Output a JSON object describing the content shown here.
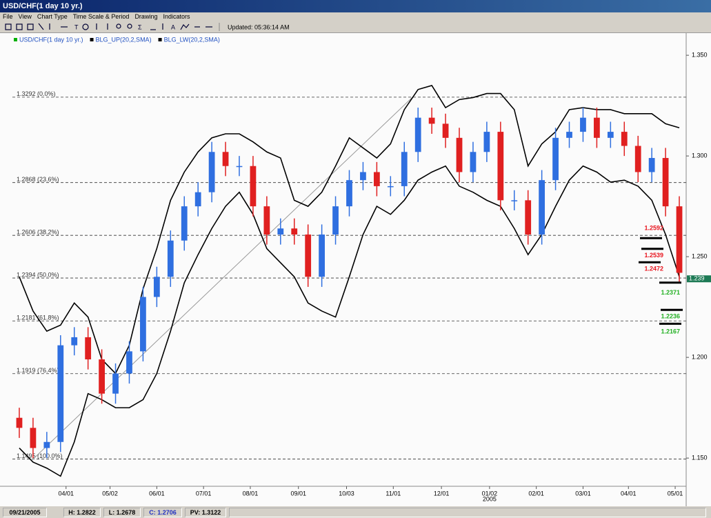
{
  "window": {
    "title": "USD/CHF(1 day 10 yr.)",
    "menu": [
      "File",
      "View",
      "Chart Type",
      "Time Scale & Period",
      "Drawing",
      "Indicators"
    ],
    "updated": "Updated: 05:36:14 AM",
    "status": [
      "09/21/2005",
      "H: 1.2822",
      "L: 1.2678",
      "C: 1.2706",
      "PV: 1.3122"
    ]
  },
  "chart_data": {
    "type": "candlestick",
    "legend": [
      {
        "name": "USD/CHF(1 day 10 yr.)",
        "color": "#00b000"
      },
      {
        "name": "BLG_UP(20,2,SMA)",
        "color": "#000000"
      },
      {
        "name": "BLG_LW(20,2,SMA)",
        "color": "#000000"
      }
    ],
    "up_color": "#2f6fe0",
    "down_color": "#e02020",
    "categories": [
      null,
      null,
      null,
      null,
      null,
      null,
      null,
      null,
      null,
      null,
      null,
      null,
      null,
      null,
      null,
      null,
      null,
      null,
      null,
      null,
      null,
      null,
      null,
      null,
      null,
      null,
      null,
      null,
      null,
      null,
      null,
      null,
      null,
      null,
      null,
      null,
      null,
      null,
      null,
      null,
      null,
      null,
      null,
      null,
      null,
      null,
      null,
      null,
      null
    ],
    "open": [
      1.17,
      1.165,
      1.155,
      1.158,
      1.206,
      1.21,
      1.199,
      1.182,
      1.192,
      1.203,
      1.23,
      1.24,
      1.258,
      1.275,
      1.282,
      1.302,
      1.295,
      1.295,
      1.275,
      1.261,
      1.264,
      1.261,
      1.24,
      1.261,
      1.275,
      1.288,
      1.292,
      1.285,
      1.285,
      1.302,
      1.319,
      1.316,
      1.309,
      1.292,
      1.302,
      1.312,
      1.278,
      1.278,
      1.261,
      1.288,
      1.309,
      1.312,
      1.319,
      1.309,
      1.312,
      1.305,
      1.292,
      1.299,
      1.275
    ],
    "high": [
      1.175,
      1.17,
      1.163,
      1.211,
      1.215,
      1.215,
      1.204,
      1.197,
      1.208,
      1.235,
      1.245,
      1.263,
      1.28,
      1.287,
      1.307,
      1.307,
      1.3,
      1.3,
      1.28,
      1.269,
      1.269,
      1.266,
      1.266,
      1.28,
      1.293,
      1.297,
      1.297,
      1.29,
      1.307,
      1.324,
      1.324,
      1.321,
      1.314,
      1.307,
      1.317,
      1.317,
      1.283,
      1.283,
      1.293,
      1.314,
      1.317,
      1.324,
      1.324,
      1.317,
      1.317,
      1.31,
      1.304,
      1.304,
      1.28
    ],
    "low": [
      1.16,
      1.15,
      1.15,
      1.153,
      1.201,
      1.194,
      1.177,
      1.177,
      1.187,
      1.198,
      1.225,
      1.235,
      1.253,
      1.27,
      1.277,
      1.29,
      1.29,
      1.27,
      1.256,
      1.256,
      1.256,
      1.235,
      1.235,
      1.256,
      1.27,
      1.283,
      1.28,
      1.28,
      1.28,
      1.297,
      1.311,
      1.304,
      1.287,
      1.287,
      1.297,
      1.273,
      1.273,
      1.256,
      1.256,
      1.283,
      1.304,
      1.307,
      1.304,
      1.304,
      1.3,
      1.287,
      1.287,
      1.27,
      1.237
    ],
    "close": [
      1.165,
      1.155,
      1.158,
      1.206,
      1.21,
      1.199,
      1.182,
      1.192,
      1.203,
      1.23,
      1.24,
      1.258,
      1.275,
      1.282,
      1.302,
      1.295,
      1.295,
      1.275,
      1.261,
      1.264,
      1.261,
      1.24,
      1.261,
      1.275,
      1.288,
      1.292,
      1.285,
      1.285,
      1.302,
      1.319,
      1.316,
      1.309,
      1.292,
      1.302,
      1.312,
      1.278,
      1.278,
      1.261,
      1.288,
      1.309,
      1.312,
      1.319,
      1.309,
      1.312,
      1.305,
      1.292,
      1.299,
      1.275,
      1.242
    ],
    "series": [
      {
        "name": "BLG_UP(20,2,SMA)",
        "color": "#000000",
        "values": [
          1.24,
          1.223,
          1.213,
          1.216,
          1.227,
          1.22,
          1.199,
          1.192,
          1.206,
          1.234,
          1.254,
          1.278,
          1.292,
          1.302,
          1.309,
          1.311,
          1.311,
          1.307,
          1.302,
          1.299,
          1.278,
          1.275,
          1.282,
          1.295,
          1.309,
          1.304,
          1.299,
          1.306,
          1.323,
          1.333,
          1.335,
          1.324,
          1.328,
          1.329,
          1.331,
          1.331,
          1.323,
          1.295,
          1.306,
          1.312,
          1.323,
          1.324,
          1.323,
          1.323,
          1.321,
          1.321,
          1.321,
          1.316,
          1.314
        ]
      },
      {
        "name": "BLG_LW(20,2,SMA)",
        "color": "#000000",
        "values": [
          1.155,
          1.148,
          1.145,
          1.141,
          1.158,
          1.182,
          1.179,
          1.175,
          1.175,
          1.179,
          1.192,
          1.213,
          1.237,
          1.251,
          1.264,
          1.275,
          1.282,
          1.271,
          1.254,
          1.247,
          1.24,
          1.227,
          1.223,
          1.22,
          1.24,
          1.261,
          1.275,
          1.271,
          1.278,
          1.288,
          1.292,
          1.295,
          1.285,
          1.282,
          1.278,
          1.275,
          1.264,
          1.251,
          1.261,
          1.275,
          1.288,
          1.295,
          1.292,
          1.287,
          1.288,
          1.285,
          1.278,
          1.261,
          1.24
        ]
      }
    ],
    "xlim": [
      -0.5,
      48.5
    ],
    "xticks": [
      {
        "value": 3.4,
        "label": "04/01"
      },
      {
        "value": 6.6,
        "label": "05/02"
      },
      {
        "value": 10.0,
        "label": "06/01"
      },
      {
        "value": 13.4,
        "label": "07/01"
      },
      {
        "value": 16.8,
        "label": "08/01"
      },
      {
        "value": 20.3,
        "label": "09/01"
      },
      {
        "value": 23.8,
        "label": "10/03"
      },
      {
        "value": 27.2,
        "label": "11/01"
      },
      {
        "value": 30.7,
        "label": "12/01"
      },
      {
        "value": 34.2,
        "label": "01/02",
        "sublabel": "2005"
      },
      {
        "value": 37.6,
        "label": "02/01"
      },
      {
        "value": 41.0,
        "label": "03/01"
      },
      {
        "value": 44.3,
        "label": "04/01"
      },
      {
        "value": 47.7,
        "label": "05/01"
      }
    ],
    "ylim": [
      1.136,
      1.361
    ],
    "yticks": [
      {
        "value": 1.35,
        "label": "1.350"
      },
      {
        "value": 1.3,
        "label": "1.300"
      },
      {
        "value": 1.25,
        "label": "1.250"
      },
      {
        "value": 1.2,
        "label": "1.200"
      },
      {
        "value": 1.15,
        "label": "1.150"
      }
    ],
    "fib_levels": [
      {
        "value": 1.3292,
        "label": "1.3292 (0.0%)"
      },
      {
        "value": 1.2868,
        "label": "1.2868 (23.6%)"
      },
      {
        "value": 1.2606,
        "label": "1.2606 (38.2%)"
      },
      {
        "value": 1.2394,
        "label": "1.2394 (50.0%)"
      },
      {
        "value": 1.2181,
        "label": "1.2181 (61.8%)"
      },
      {
        "value": 1.1919,
        "label": "1.1919 (76.4%)"
      },
      {
        "value": 1.1495,
        "label": "1.1495 (100.0%)"
      }
    ],
    "trendline": {
      "x": [
        1.0,
        28.6
      ],
      "y": [
        1.1495,
        1.3292
      ]
    },
    "levels": [
      {
        "value": 1.2592,
        "color": "#e8141e"
      },
      {
        "value": 1.2539,
        "color": "#e8141e"
      },
      {
        "value": 1.2472,
        "color": "#e8141e"
      },
      {
        "value": 1.2371,
        "color": "#22b022"
      },
      {
        "value": 1.2236,
        "color": "#22b022"
      },
      {
        "value": 1.2167,
        "color": "#22b022"
      }
    ],
    "current_price": {
      "value": 1.239,
      "color": "#1d7a55"
    }
  }
}
